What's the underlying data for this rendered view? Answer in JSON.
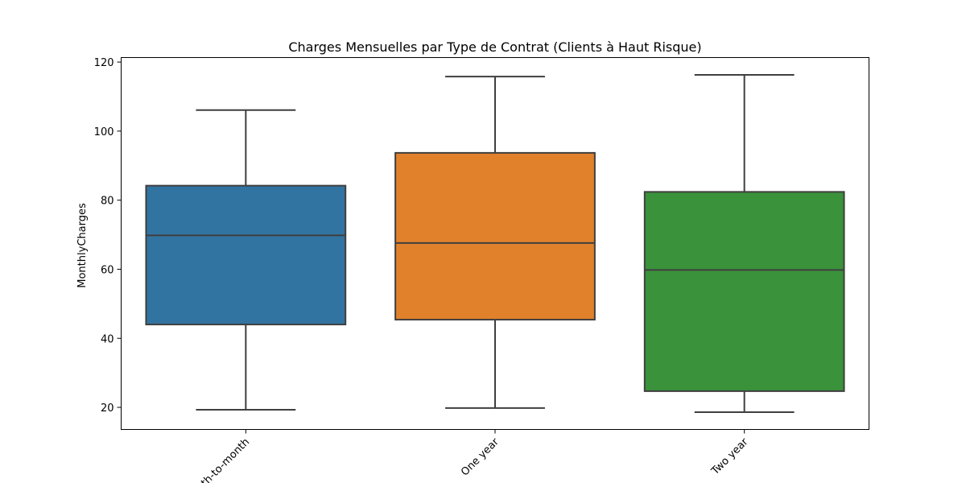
{
  "chart_data": {
    "type": "box",
    "title": "Charges Mensuelles par Type de Contrat (Clients à Haut Risque)",
    "xlabel": "",
    "ylabel": "MonthlyCharges",
    "ylim": [
      13.6,
      121.3
    ],
    "yticks": [
      20,
      40,
      60,
      80,
      100,
      120
    ],
    "grid": false,
    "categories": [
      "Month-to-month",
      "One year",
      "Two year"
    ],
    "boxes": [
      {
        "category": "Month-to-month",
        "min": 19.3,
        "q1": 44.0,
        "median": 69.8,
        "q3": 84.2,
        "max": 106.1,
        "color": "#3274a1"
      },
      {
        "category": "One year",
        "min": 19.8,
        "q1": 45.4,
        "median": 67.6,
        "q3": 93.7,
        "max": 115.8,
        "color": "#e1812c"
      },
      {
        "category": "Two year",
        "min": 18.6,
        "q1": 24.7,
        "median": 59.8,
        "q3": 82.4,
        "max": 116.3,
        "color": "#3a923a"
      }
    ],
    "line_color": "#3f3f3f"
  }
}
